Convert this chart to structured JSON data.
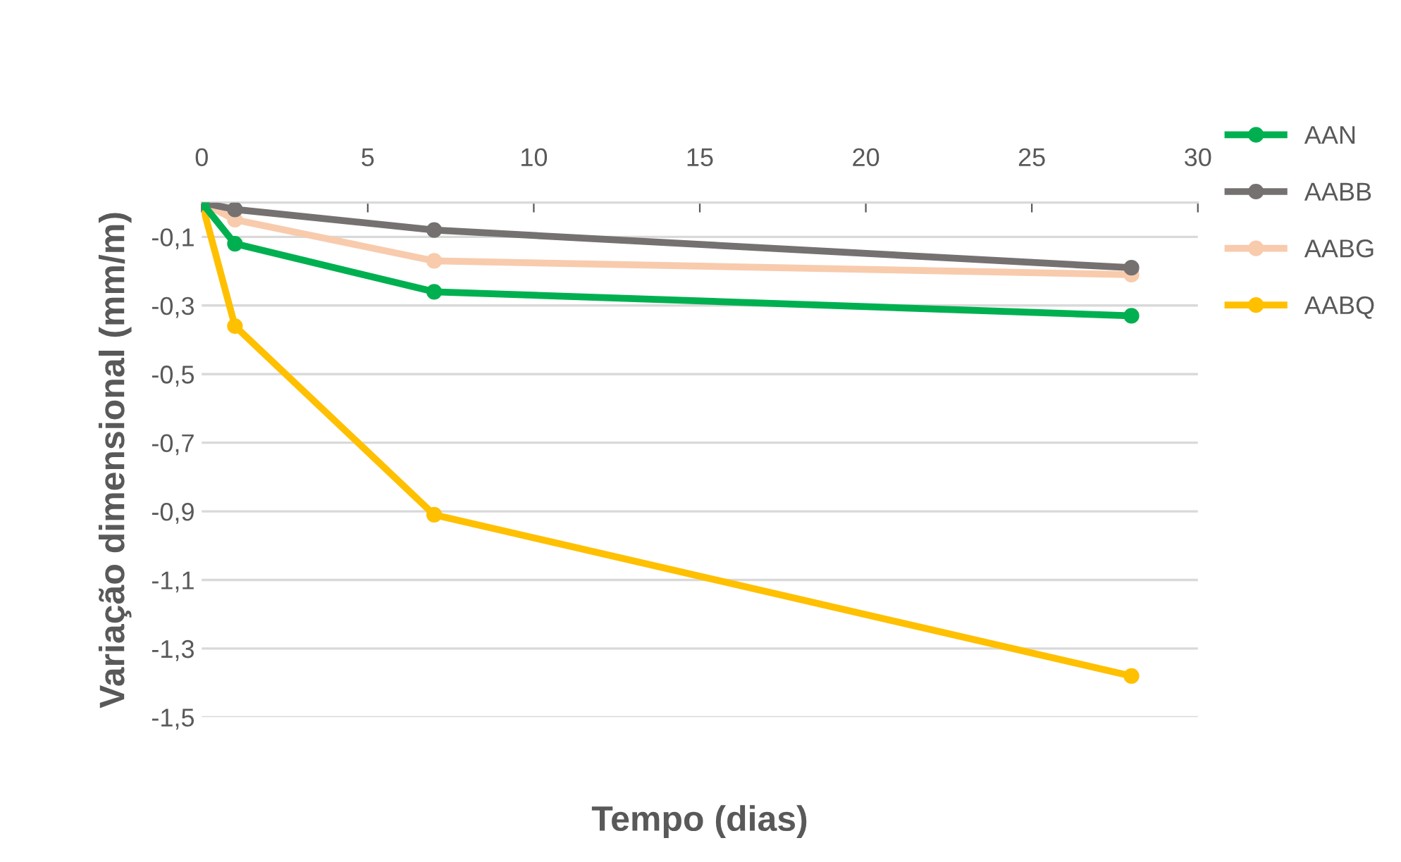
{
  "chart_data": {
    "type": "line",
    "xlabel": "Tempo (dias)",
    "ylabel": "Variação dimensional (mm/m)",
    "x": [
      0,
      1,
      7,
      28
    ],
    "series": [
      {
        "name": "AAN",
        "color": "#00b050",
        "values": [
          0,
          -0.12,
          -0.26,
          -0.33
        ]
      },
      {
        "name": "AABB",
        "color": "#767171",
        "values": [
          0,
          -0.02,
          -0.08,
          -0.19
        ]
      },
      {
        "name": "AABG",
        "color": "#f8cbad",
        "values": [
          0,
          -0.05,
          -0.17,
          -0.21
        ]
      },
      {
        "name": "AABQ",
        "color": "#ffc000",
        "values": [
          0,
          -0.36,
          -0.91,
          -1.38
        ]
      }
    ],
    "xlim": [
      0,
      30
    ],
    "xticks": [
      0,
      5,
      10,
      15,
      20,
      25,
      30
    ],
    "ylim": [
      -1.5,
      0
    ],
    "yticks": [
      {
        "value": -1.5,
        "label": "-1,5"
      },
      {
        "value": -1.3,
        "label": "-1,3"
      },
      {
        "value": -1.1,
        "label": "-1,1"
      },
      {
        "value": -0.9,
        "label": "-0,9"
      },
      {
        "value": -0.7,
        "label": "-0,7"
      },
      {
        "value": -0.5,
        "label": "-0,5"
      },
      {
        "value": -0.3,
        "label": "-0,3"
      },
      {
        "value": -0.1,
        "label": "-0,1"
      }
    ],
    "grid": "y",
    "legend": "right",
    "marker": "circle",
    "line_style": "solid"
  }
}
